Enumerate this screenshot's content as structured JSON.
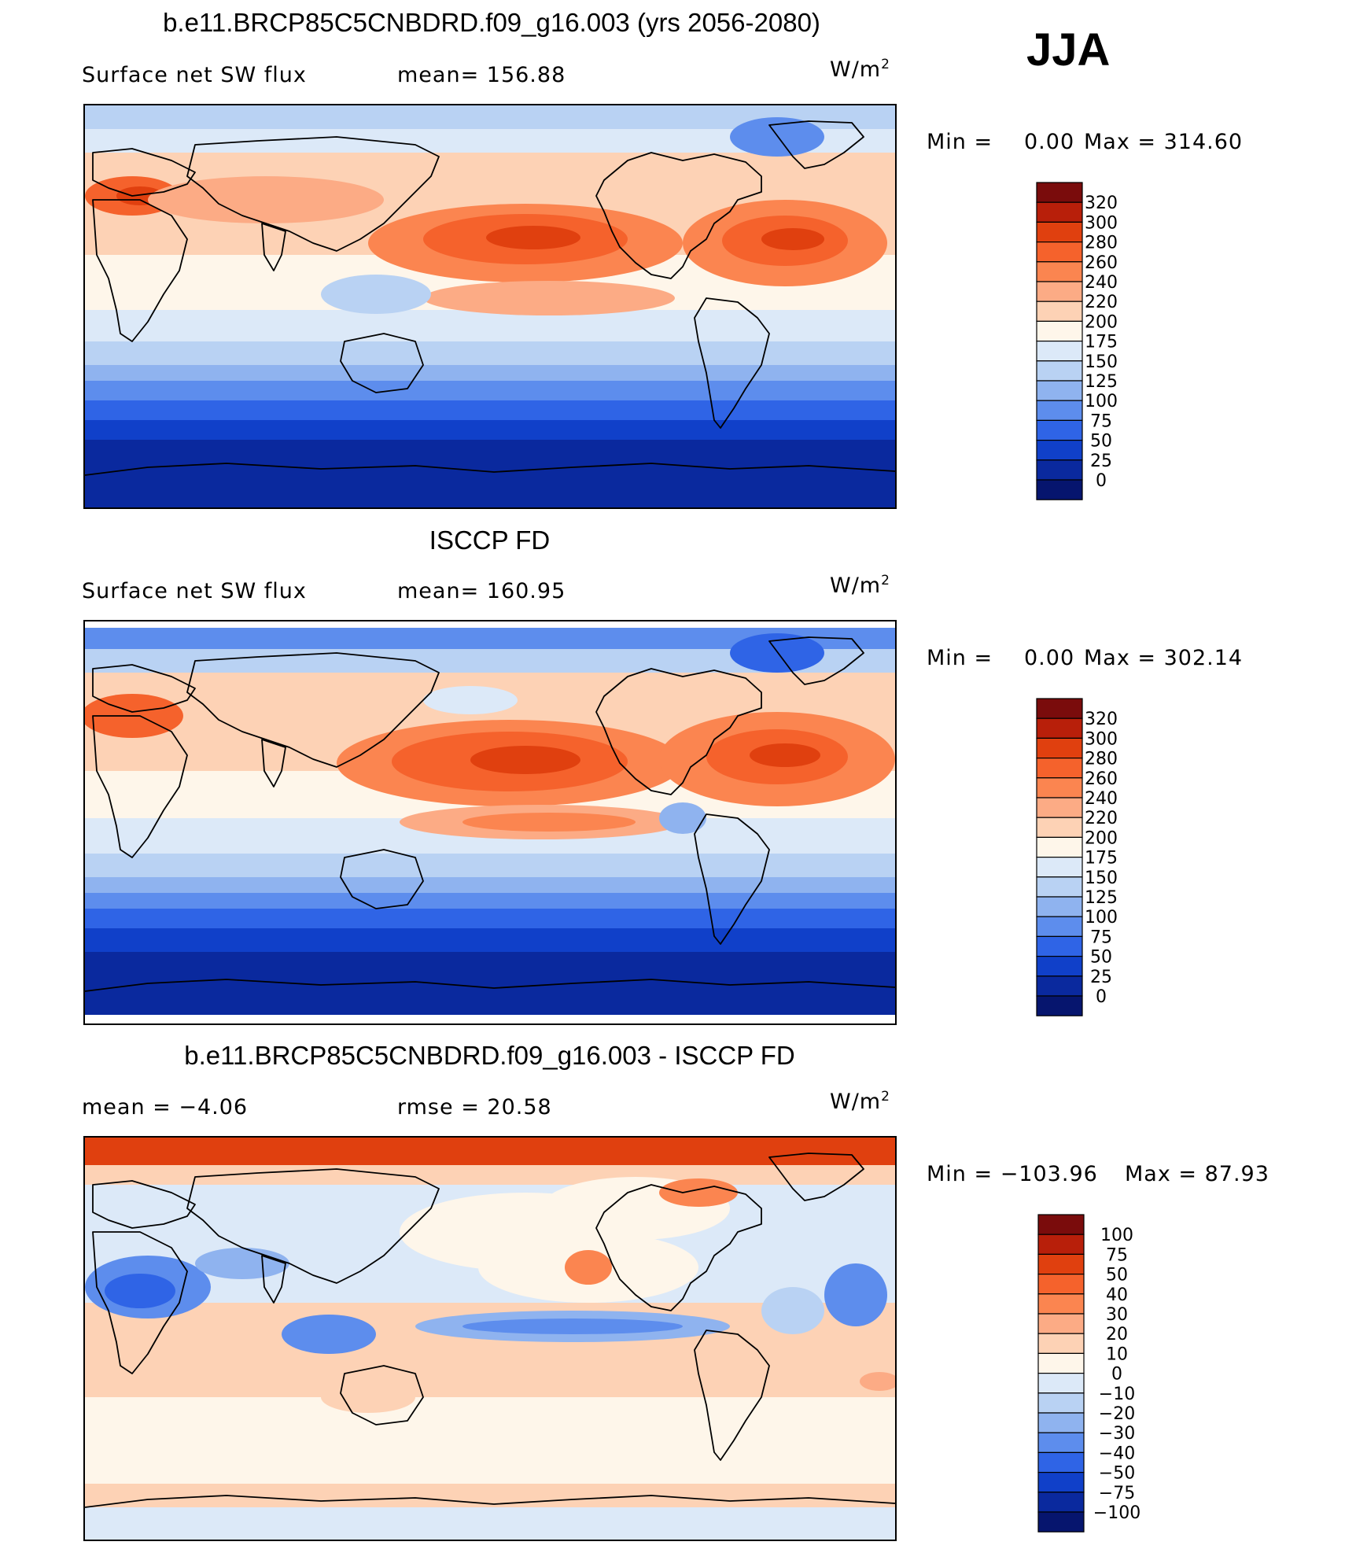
{
  "season": "JJA",
  "panels": [
    {
      "title": "b.e11.BRCP85C5CNBDRD.f09_g16.003 (yrs 2056-2080)",
      "left_label": "Surface net SW flux",
      "mid_label": "mean= 156.88",
      "units": "W/m",
      "units_sup": "2",
      "minmax": "Min = 0.00 Max = 314.60",
      "min_text": "Min =",
      "min_val": "0.00",
      "max_text": "Max = 314.60",
      "field_kind": "model",
      "colorbar": {
        "labels": [
          "320",
          "300",
          "280",
          "260",
          "240",
          "220",
          "200",
          "175",
          "150",
          "125",
          "100",
          "75",
          "50",
          "25",
          "0"
        ],
        "colors": [
          "#7a0c0c",
          "#b81f0a",
          "#e0400f",
          "#f5622c",
          "#fb8550",
          "#fcab85",
          "#fdd2b5",
          "#fef6ea",
          "#dce9f8",
          "#b9d2f3",
          "#8fb3ef",
          "#5d8ded",
          "#2f64e6",
          "#1040c9",
          "#0a299e",
          "#06156e"
        ]
      }
    },
    {
      "title": "ISCCP FD",
      "left_label": "Surface net SW flux",
      "mid_label": "mean= 160.95",
      "units": "W/m",
      "units_sup": "2",
      "min_text": "Min =",
      "min_val": "0.00",
      "max_text": "Max = 302.14",
      "field_kind": "obs",
      "colorbar": {
        "labels": [
          "320",
          "300",
          "280",
          "260",
          "240",
          "220",
          "200",
          "175",
          "150",
          "125",
          "100",
          "75",
          "50",
          "25",
          "0"
        ],
        "colors": [
          "#7a0c0c",
          "#b81f0a",
          "#e0400f",
          "#f5622c",
          "#fb8550",
          "#fcab85",
          "#fdd2b5",
          "#fef6ea",
          "#dce9f8",
          "#b9d2f3",
          "#8fb3ef",
          "#5d8ded",
          "#2f64e6",
          "#1040c9",
          "#0a299e",
          "#06156e"
        ]
      }
    },
    {
      "title": "b.e11.BRCP85C5CNBDRD.f09_g16.003 - ISCCP FD",
      "left_label": "mean = −4.06",
      "mid_label": "rmse = 20.58",
      "units": "W/m",
      "units_sup": "2",
      "min_text": "Min = −103.96",
      "min_val": "",
      "max_text": "Max = 87.93",
      "field_kind": "diff",
      "colorbar": {
        "labels": [
          "100",
          "75",
          "50",
          "40",
          "30",
          "20",
          "10",
          "0",
          "−10",
          "−20",
          "−30",
          "−40",
          "−50",
          "−75",
          "−100"
        ],
        "colors": [
          "#7a0c0c",
          "#b81f0a",
          "#e0400f",
          "#f5622c",
          "#fb8550",
          "#fcab85",
          "#fdd2b5",
          "#fef6ea",
          "#dce9f8",
          "#b9d2f3",
          "#8fb3ef",
          "#5d8ded",
          "#2f64e6",
          "#1040c9",
          "#0a299e",
          "#06156e"
        ]
      }
    }
  ]
}
